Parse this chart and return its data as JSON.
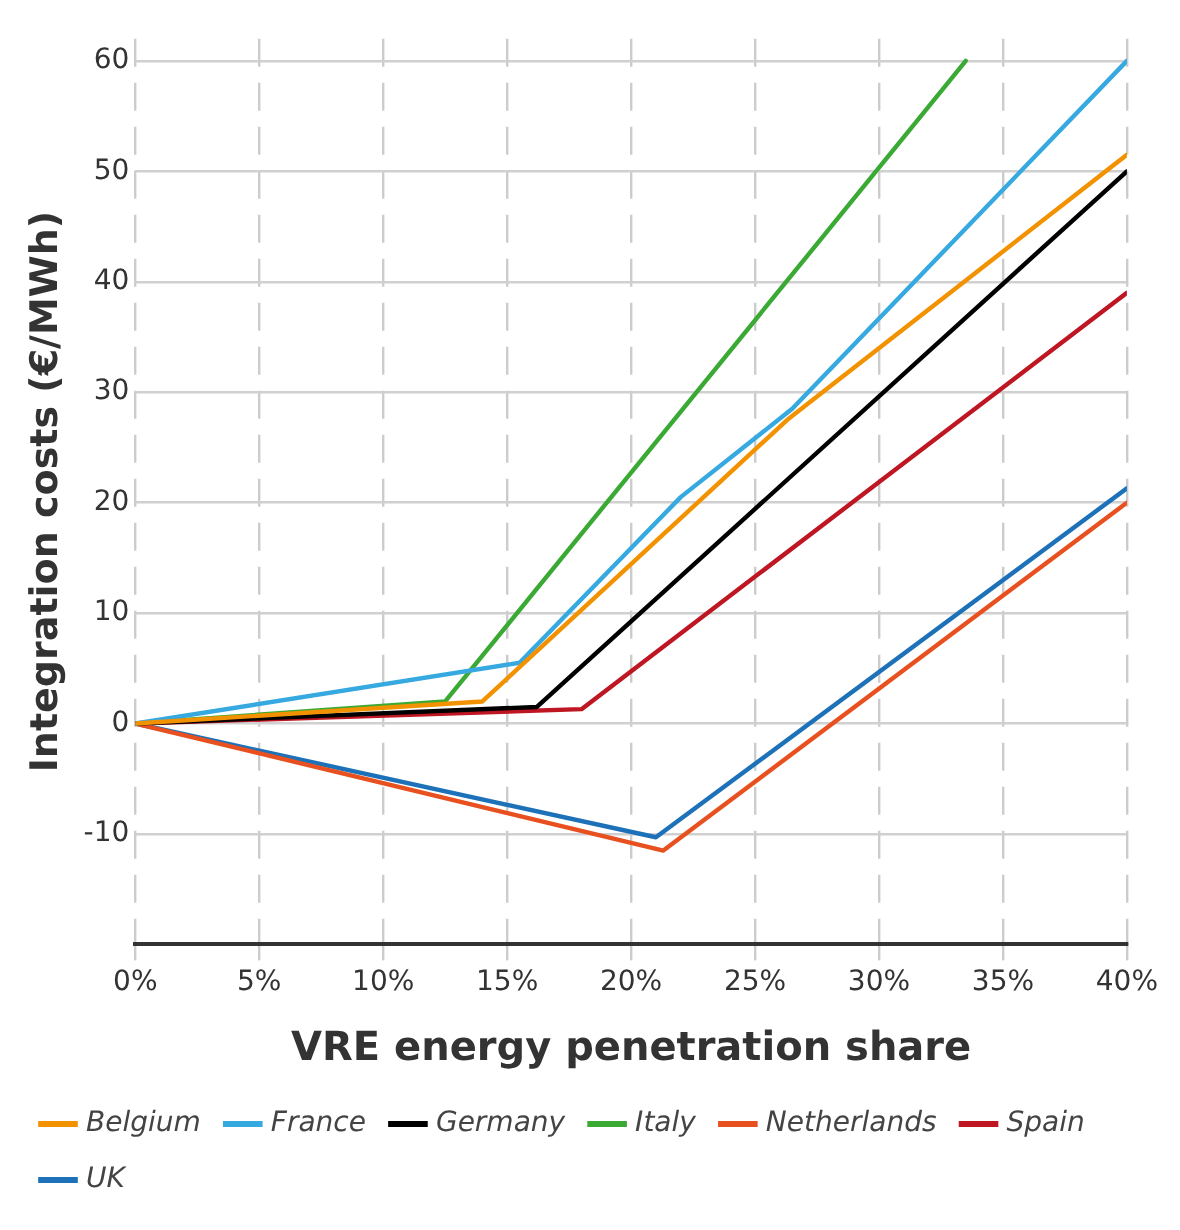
{
  "chart_data": {
    "type": "line",
    "xlabel": "VRE energy penetration share",
    "ylabel": "Integration costs (€/MWh)",
    "xlim": [
      0,
      40
    ],
    "xticks": [
      {
        "value": 0,
        "label": "0%"
      },
      {
        "value": 5,
        "label": "5%"
      },
      {
        "value": 10,
        "label": "10%"
      },
      {
        "value": 15,
        "label": "15%"
      },
      {
        "value": 20,
        "label": "20%"
      },
      {
        "value": 25,
        "label": "25%"
      },
      {
        "value": 30,
        "label": "30%"
      },
      {
        "value": 35,
        "label": "35%"
      },
      {
        "value": 40,
        "label": "40%"
      }
    ],
    "ylim": [
      -20,
      62
    ],
    "yticks": [
      -10,
      0,
      10,
      20,
      30,
      40,
      50,
      60
    ],
    "grid": true,
    "legend": "bottom",
    "marker": "none",
    "line_style": "solid",
    "series": [
      {
        "name": "Belgium",
        "color": "#f39200",
        "x": [
          0,
          14,
          26.3,
          40
        ],
        "values": [
          0,
          2,
          27.5,
          51.5
        ]
      },
      {
        "name": "France",
        "color": "#36a9e1",
        "x": [
          0,
          15.5,
          22,
          26.5,
          40
        ],
        "values": [
          0,
          5.5,
          20.5,
          28.5,
          60
        ]
      },
      {
        "name": "Germany",
        "color": "#000000",
        "x": [
          0,
          16.2,
          40
        ],
        "values": [
          0,
          1.5,
          50
        ]
      },
      {
        "name": "Italy",
        "color": "#3aaa35",
        "x": [
          0,
          12.5,
          33.5
        ],
        "values": [
          0,
          2,
          60
        ]
      },
      {
        "name": "Netherlands",
        "color": "#e8511f",
        "x": [
          0,
          21.3,
          40
        ],
        "values": [
          0,
          -11.5,
          20
        ]
      },
      {
        "name": "Spain",
        "color": "#be1622",
        "x": [
          0,
          18,
          40
        ],
        "values": [
          0,
          1.3,
          39
        ]
      },
      {
        "name": "UK",
        "color": "#1d71b8",
        "x": [
          0,
          21,
          40
        ],
        "values": [
          0,
          -10.3,
          21.3
        ]
      }
    ]
  }
}
